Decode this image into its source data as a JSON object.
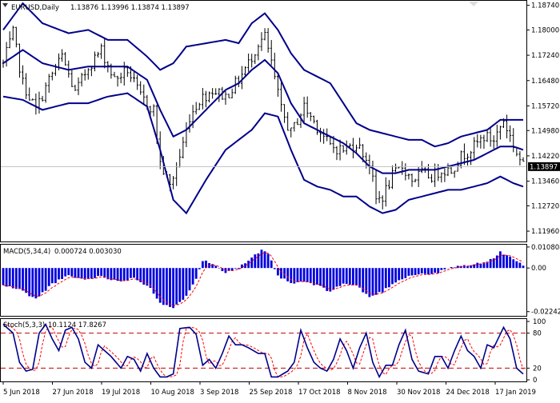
{
  "colors": {
    "background": "#ffffff",
    "bars": "#000000",
    "bands": "#00008b",
    "macd_hist": "#0000e0",
    "macd_signal": "#ff0000",
    "stoch_main": "#00008b",
    "stoch_signal": "#ff0000",
    "stoch_levels": "#c00000",
    "current_price_bg": "#000000",
    "current_price_text": "#ffffff",
    "current_price_line": "#c0c0c0",
    "grid_frame": "#000000"
  },
  "header": {
    "symbol": "EURUSD,Daily",
    "ohlc": "1.13876 1.13996 1.13874 1.13897",
    "corner_icon": "chevron-down-icon"
  },
  "macd_header": {
    "name": "MACD(5,34,4)",
    "values": "0.000724 0.003030"
  },
  "stoch_header": {
    "name": "Stoch(5,3,3)",
    "values": "10.1124 17.8267"
  },
  "current_price": "1.13897",
  "chart_data": [
    {
      "type": "bar",
      "title": "EURUSD,Daily",
      "subtitle": "1.13876 1.13996 1.13874 1.13897",
      "ylim": [
        1.1165,
        1.1885
      ],
      "yticks": [
        "1.18740",
        "1.18000",
        "1.17240",
        "1.16480",
        "1.15720",
        "1.14980",
        "1.14220",
        "1.13460",
        "1.12720",
        "1.11960"
      ],
      "xticks": [
        "5 Jun 2018",
        "27 Jun 2018",
        "19 Jul 2018",
        "10 Aug 2018",
        "3 Sep 2018",
        "25 Sep 2018",
        "17 Oct 2018",
        "8 Nov 2018",
        "30 Nov 2018",
        "24 Dec 2018",
        "17 Jan 2019"
      ],
      "close_anchors": [
        [
          0,
          1.17
        ],
        [
          3,
          1.179
        ],
        [
          6,
          1.164
        ],
        [
          10,
          1.156
        ],
        [
          14,
          1.165
        ],
        [
          18,
          1.172
        ],
        [
          22,
          1.161
        ],
        [
          26,
          1.169
        ],
        [
          30,
          1.174
        ],
        [
          34,
          1.165
        ],
        [
          38,
          1.168
        ],
        [
          42,
          1.16
        ],
        [
          46,
          1.156
        ],
        [
          48,
          1.14
        ],
        [
          51,
          1.133
        ],
        [
          54,
          1.142
        ],
        [
          57,
          1.154
        ],
        [
          60,
          1.159
        ],
        [
          64,
          1.162
        ],
        [
          68,
          1.16
        ],
        [
          72,
          1.165
        ],
        [
          75,
          1.17
        ],
        [
          78,
          1.176
        ],
        [
          80,
          1.178
        ],
        [
          82,
          1.17
        ],
        [
          85,
          1.156
        ],
        [
          88,
          1.149
        ],
        [
          92,
          1.157
        ],
        [
          96,
          1.151
        ],
        [
          100,
          1.145
        ],
        [
          104,
          1.144
        ],
        [
          108,
          1.146
        ],
        [
          112,
          1.14
        ],
        [
          114,
          1.129
        ],
        [
          116,
          1.13
        ],
        [
          119,
          1.136
        ],
        [
          122,
          1.139
        ],
        [
          125,
          1.135
        ],
        [
          128,
          1.137
        ],
        [
          131,
          1.136
        ],
        [
          134,
          1.138
        ],
        [
          137,
          1.138
        ],
        [
          140,
          1.142
        ],
        [
          144,
          1.145
        ],
        [
          147,
          1.148
        ],
        [
          150,
          1.147
        ],
        [
          153,
          1.153
        ],
        [
          155,
          1.148
        ],
        [
          157,
          1.143
        ],
        [
          159,
          1.139
        ]
      ],
      "bollinger": {
        "upper": [
          [
            0,
            1.18
          ],
          [
            6,
            1.188
          ],
          [
            12,
            1.182
          ],
          [
            20,
            1.179
          ],
          [
            26,
            1.18
          ],
          [
            32,
            1.177
          ],
          [
            38,
            1.177
          ],
          [
            44,
            1.172
          ],
          [
            48,
            1.168
          ],
          [
            52,
            1.17
          ],
          [
            56,
            1.175
          ],
          [
            62,
            1.176
          ],
          [
            68,
            1.177
          ],
          [
            72,
            1.176
          ],
          [
            76,
            1.182
          ],
          [
            80,
            1.185
          ],
          [
            84,
            1.18
          ],
          [
            88,
            1.173
          ],
          [
            92,
            1.168
          ],
          [
            96,
            1.166
          ],
          [
            100,
            1.164
          ],
          [
            104,
            1.158
          ],
          [
            108,
            1.152
          ],
          [
            112,
            1.15
          ],
          [
            116,
            1.149
          ],
          [
            120,
            1.148
          ],
          [
            124,
            1.147
          ],
          [
            128,
            1.147
          ],
          [
            132,
            1.145
          ],
          [
            136,
            1.146
          ],
          [
            140,
            1.148
          ],
          [
            144,
            1.149
          ],
          [
            148,
            1.15
          ],
          [
            152,
            1.153
          ],
          [
            156,
            1.153
          ],
          [
            159,
            1.153
          ]
        ],
        "middle": [
          [
            0,
            1.17
          ],
          [
            6,
            1.174
          ],
          [
            12,
            1.17
          ],
          [
            20,
            1.168
          ],
          [
            26,
            1.169
          ],
          [
            32,
            1.169
          ],
          [
            38,
            1.169
          ],
          [
            44,
            1.165
          ],
          [
            48,
            1.156
          ],
          [
            52,
            1.148
          ],
          [
            56,
            1.15
          ],
          [
            62,
            1.156
          ],
          [
            68,
            1.162
          ],
          [
            72,
            1.164
          ],
          [
            76,
            1.168
          ],
          [
            80,
            1.171
          ],
          [
            84,
            1.167
          ],
          [
            88,
            1.158
          ],
          [
            92,
            1.152
          ],
          [
            96,
            1.15
          ],
          [
            100,
            1.148
          ],
          [
            104,
            1.146
          ],
          [
            108,
            1.143
          ],
          [
            112,
            1.139
          ],
          [
            116,
            1.137
          ],
          [
            120,
            1.137
          ],
          [
            124,
            1.138
          ],
          [
            128,
            1.138
          ],
          [
            132,
            1.138
          ],
          [
            136,
            1.139
          ],
          [
            140,
            1.14
          ],
          [
            144,
            1.141
          ],
          [
            148,
            1.143
          ],
          [
            152,
            1.145
          ],
          [
            156,
            1.145
          ],
          [
            159,
            1.144
          ]
        ],
        "lower": [
          [
            0,
            1.16
          ],
          [
            6,
            1.159
          ],
          [
            12,
            1.156
          ],
          [
            20,
            1.158
          ],
          [
            26,
            1.158
          ],
          [
            32,
            1.16
          ],
          [
            38,
            1.161
          ],
          [
            44,
            1.157
          ],
          [
            48,
            1.144
          ],
          [
            52,
            1.129
          ],
          [
            56,
            1.125
          ],
          [
            62,
            1.135
          ],
          [
            68,
            1.144
          ],
          [
            72,
            1.147
          ],
          [
            76,
            1.15
          ],
          [
            80,
            1.155
          ],
          [
            84,
            1.154
          ],
          [
            88,
            1.144
          ],
          [
            92,
            1.135
          ],
          [
            96,
            1.133
          ],
          [
            100,
            1.132
          ],
          [
            104,
            1.13
          ],
          [
            108,
            1.13
          ],
          [
            112,
            1.127
          ],
          [
            116,
            1.125
          ],
          [
            120,
            1.126
          ],
          [
            124,
            1.129
          ],
          [
            128,
            1.13
          ],
          [
            132,
            1.131
          ],
          [
            136,
            1.132
          ],
          [
            140,
            1.132
          ],
          [
            144,
            1.133
          ],
          [
            148,
            1.134
          ],
          [
            152,
            1.136
          ],
          [
            156,
            1.134
          ],
          [
            159,
            1.133
          ]
        ]
      }
    },
    {
      "type": "bar",
      "title": "MACD(5,34,4)",
      "subtitle": "0.000724 0.003030",
      "ylim": [
        -0.025,
        0.012
      ],
      "yticks": [
        "0.010808",
        "0.00",
        "-0.022420"
      ],
      "histogram_anchors": [
        [
          0,
          -0.009
        ],
        [
          5,
          -0.011
        ],
        [
          10,
          -0.016
        ],
        [
          15,
          -0.008
        ],
        [
          20,
          -0.004
        ],
        [
          25,
          -0.006
        ],
        [
          30,
          -0.004
        ],
        [
          35,
          -0.007
        ],
        [
          40,
          -0.005
        ],
        [
          45,
          -0.01
        ],
        [
          48,
          -0.018
        ],
        [
          52,
          -0.021
        ],
        [
          56,
          -0.014
        ],
        [
          59,
          -0.005
        ],
        [
          61,
          0.004
        ],
        [
          64,
          0.002
        ],
        [
          68,
          -0.002
        ],
        [
          72,
          0.0
        ],
        [
          75,
          0.004
        ],
        [
          79,
          0.009
        ],
        [
          81,
          0.007
        ],
        [
          84,
          -0.004
        ],
        [
          88,
          -0.008
        ],
        [
          92,
          -0.007
        ],
        [
          96,
          -0.009
        ],
        [
          100,
          -0.012
        ],
        [
          104,
          -0.008
        ],
        [
          108,
          -0.009
        ],
        [
          112,
          -0.015
        ],
        [
          116,
          -0.012
        ],
        [
          120,
          -0.007
        ],
        [
          124,
          -0.004
        ],
        [
          128,
          -0.003
        ],
        [
          132,
          -0.003
        ],
        [
          136,
          0.0
        ],
        [
          140,
          0.001
        ],
        [
          144,
          0.002
        ],
        [
          148,
          0.003
        ],
        [
          152,
          0.008
        ],
        [
          155,
          0.006
        ],
        [
          159,
          0.001
        ]
      ]
    },
    {
      "type": "line",
      "title": "Stoch(5,3,3)",
      "subtitle": "10.1124 17.8267",
      "ylim": [
        0,
        100
      ],
      "yticks": [
        "100",
        "80",
        "20",
        "0"
      ],
      "levels": [
        80,
        20
      ],
      "main_anchors": [
        [
          0,
          95
        ],
        [
          3,
          80
        ],
        [
          5,
          30
        ],
        [
          7,
          15
        ],
        [
          9,
          18
        ],
        [
          11,
          80
        ],
        [
          13,
          95
        ],
        [
          15,
          70
        ],
        [
          17,
          50
        ],
        [
          19,
          85
        ],
        [
          21,
          90
        ],
        [
          23,
          70
        ],
        [
          25,
          30
        ],
        [
          27,
          20
        ],
        [
          29,
          60
        ],
        [
          31,
          50
        ],
        [
          33,
          40
        ],
        [
          36,
          20
        ],
        [
          38,
          40
        ],
        [
          40,
          35
        ],
        [
          42,
          15
        ],
        [
          44,
          45
        ],
        [
          46,
          20
        ],
        [
          48,
          5
        ],
        [
          50,
          5
        ],
        [
          52,
          10
        ],
        [
          54,
          88
        ],
        [
          57,
          90
        ],
        [
          59,
          78
        ],
        [
          61,
          25
        ],
        [
          63,
          35
        ],
        [
          65,
          20
        ],
        [
          67,
          45
        ],
        [
          69,
          75
        ],
        [
          71,
          60
        ],
        [
          73,
          60
        ],
        [
          75,
          55
        ],
        [
          78,
          45
        ],
        [
          80,
          45
        ],
        [
          82,
          5
        ],
        [
          84,
          5
        ],
        [
          87,
          15
        ],
        [
          89,
          30
        ],
        [
          91,
          85
        ],
        [
          93,
          55
        ],
        [
          95,
          30
        ],
        [
          97,
          20
        ],
        [
          99,
          15
        ],
        [
          101,
          35
        ],
        [
          103,
          70
        ],
        [
          105,
          50
        ],
        [
          107,
          20
        ],
        [
          109,
          55
        ],
        [
          111,
          80
        ],
        [
          113,
          30
        ],
        [
          115,
          5
        ],
        [
          117,
          25
        ],
        [
          119,
          25
        ],
        [
          121,
          60
        ],
        [
          123,
          85
        ],
        [
          125,
          35
        ],
        [
          127,
          15
        ],
        [
          130,
          10
        ],
        [
          132,
          40
        ],
        [
          134,
          40
        ],
        [
          136,
          20
        ],
        [
          138,
          50
        ],
        [
          140,
          75
        ],
        [
          142,
          50
        ],
        [
          144,
          40
        ],
        [
          146,
          20
        ],
        [
          148,
          60
        ],
        [
          150,
          55
        ],
        [
          153,
          90
        ],
        [
          155,
          70
        ],
        [
          157,
          20
        ],
        [
          159,
          10
        ]
      ],
      "signal_lag_bars": 1
    }
  ]
}
